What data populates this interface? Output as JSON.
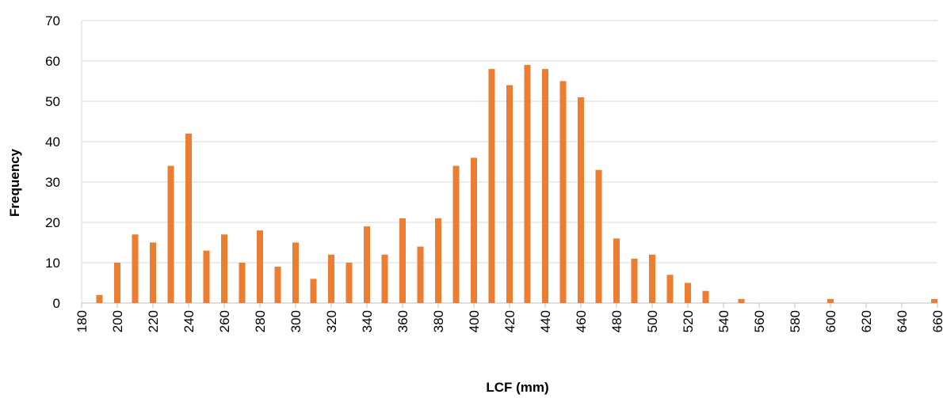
{
  "chart_data": {
    "type": "bar",
    "title": "",
    "xlabel": "LCF (mm)",
    "ylabel": "Frequency",
    "ylim": [
      0,
      70
    ],
    "yticks": [
      0,
      10,
      20,
      30,
      40,
      50,
      60,
      70
    ],
    "xlim": [
      180,
      660
    ],
    "xticks": [
      180,
      200,
      220,
      240,
      260,
      280,
      300,
      320,
      340,
      360,
      380,
      400,
      420,
      440,
      460,
      480,
      500,
      520,
      540,
      560,
      580,
      600,
      620,
      640,
      660
    ],
    "grid": true,
    "legend": "none",
    "bar_color": "#ED7D31",
    "x": [
      190,
      200,
      210,
      220,
      230,
      240,
      250,
      260,
      270,
      280,
      290,
      300,
      310,
      320,
      330,
      340,
      350,
      360,
      370,
      380,
      390,
      400,
      410,
      420,
      430,
      440,
      450,
      460,
      470,
      480,
      490,
      500,
      510,
      520,
      530,
      550,
      600,
      660
    ],
    "values": [
      2,
      10,
      17,
      15,
      34,
      42,
      13,
      17,
      10,
      18,
      9,
      15,
      6,
      12,
      10,
      19,
      12,
      21,
      14,
      21,
      34,
      36,
      58,
      54,
      59,
      58,
      55,
      51,
      33,
      16,
      11,
      12,
      7,
      5,
      3,
      1,
      1,
      1
    ]
  }
}
